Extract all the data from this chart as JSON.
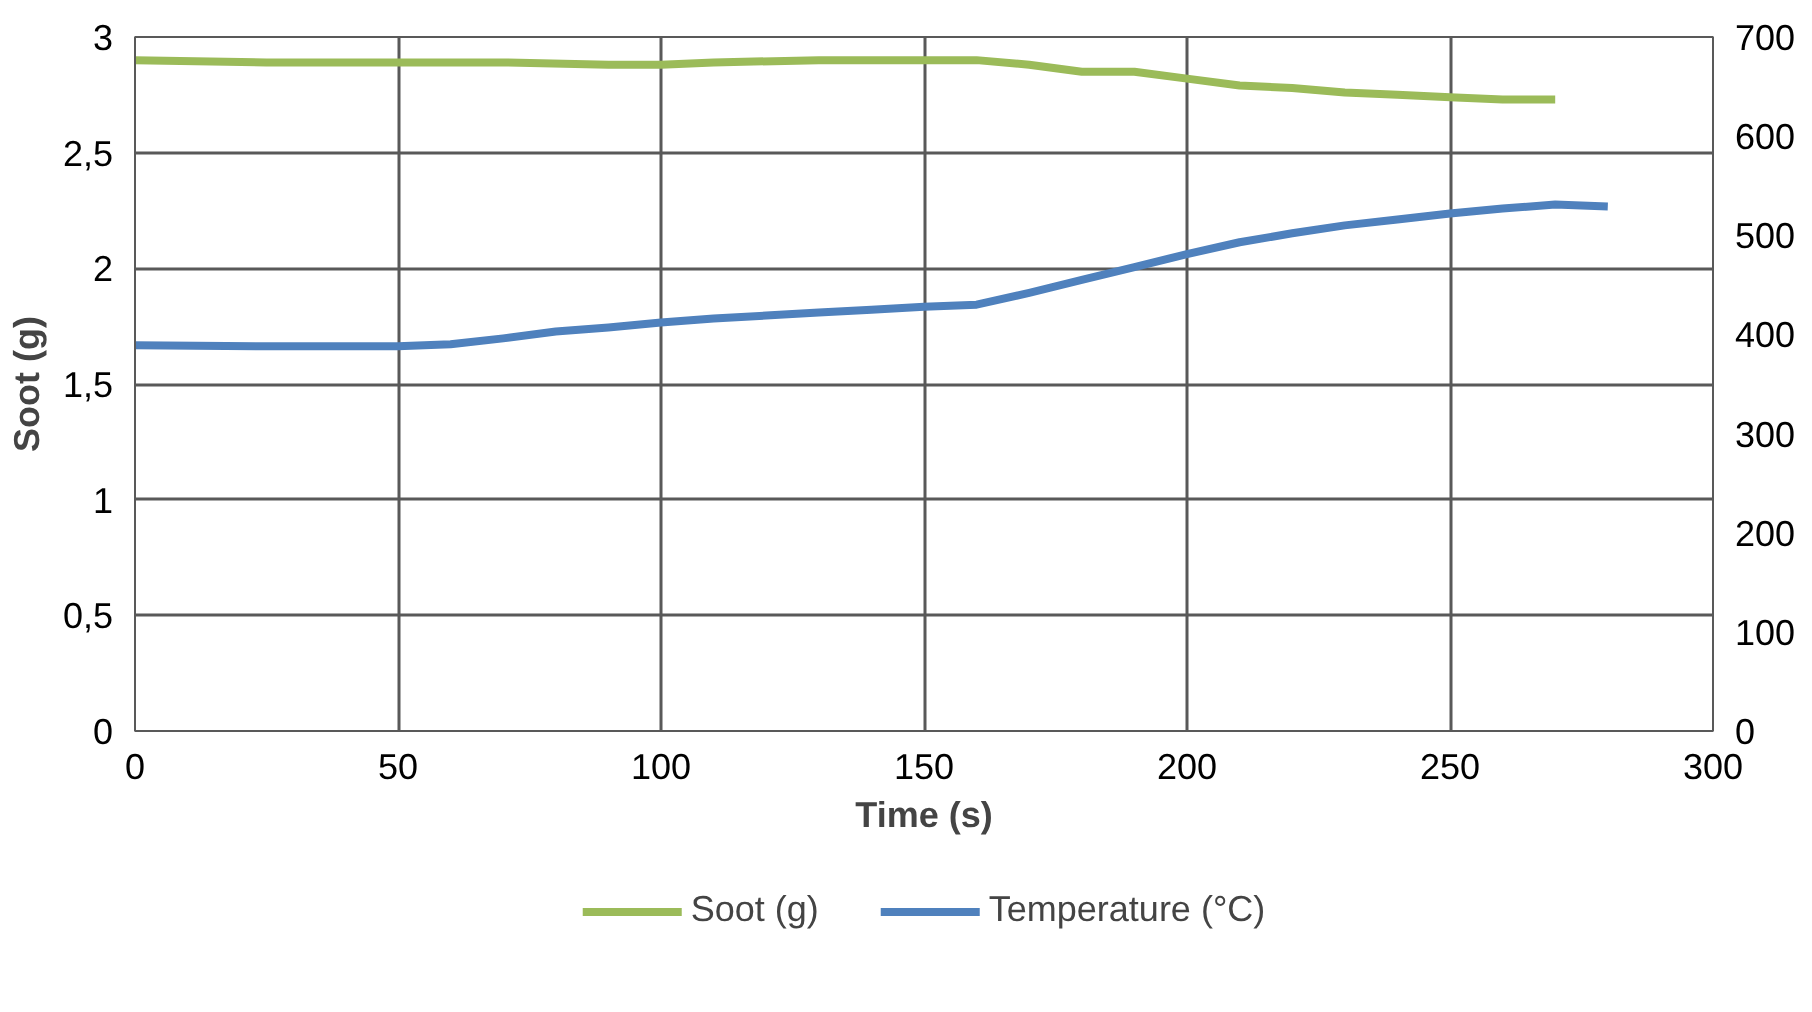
{
  "chart_data": {
    "type": "line",
    "xlabel": "Time (s)",
    "ylabel": "Soot (g)",
    "xlim": [
      0,
      300
    ],
    "xticks": [
      0,
      50,
      100,
      150,
      200,
      250,
      300
    ],
    "ylim": [
      0,
      3
    ],
    "yticks": [
      0,
      {
        "value": 0.5,
        "label": "0,5"
      },
      1,
      {
        "value": 1.5,
        "label": "1,5"
      },
      2,
      {
        "value": 2.5,
        "label": "2,5"
      },
      3
    ],
    "y2lim": [
      0,
      700
    ],
    "y2ticks": [
      0,
      100,
      200,
      300,
      400,
      500,
      600,
      700
    ],
    "grid": true,
    "legend": "bottom",
    "marker": "none",
    "line_style": "solid",
    "series": [
      {
        "name": "Soot (g)",
        "color": "#9bbb59",
        "x": [
          0,
          25,
          50,
          70,
          90,
          100,
          110,
          130,
          150,
          160,
          170,
          180,
          190,
          200,
          210,
          220,
          230,
          240,
          250,
          260,
          270
        ],
        "values": [
          2.9,
          2.89,
          2.89,
          2.89,
          2.88,
          2.88,
          2.89,
          2.9,
          2.9,
          2.9,
          2.88,
          2.85,
          2.85,
          2.82,
          2.79,
          2.78,
          2.76,
          2.75,
          2.74,
          2.73,
          2.73
        ]
      },
      {
        "name": "Temperature (°C)",
        "color": "#4f81bd",
        "axis": "y2",
        "x": [
          0,
          25,
          50,
          60,
          70,
          80,
          90,
          100,
          110,
          120,
          130,
          140,
          150,
          160,
          170,
          180,
          190,
          200,
          210,
          220,
          230,
          240,
          250,
          260,
          270,
          280
        ],
        "values": [
          389,
          388,
          388,
          390,
          396,
          403,
          407,
          412,
          416,
          419,
          422,
          425,
          428,
          430,
          442,
          455,
          468,
          481,
          493,
          502,
          510,
          516,
          522,
          527,
          531,
          529
        ]
      }
    ]
  }
}
